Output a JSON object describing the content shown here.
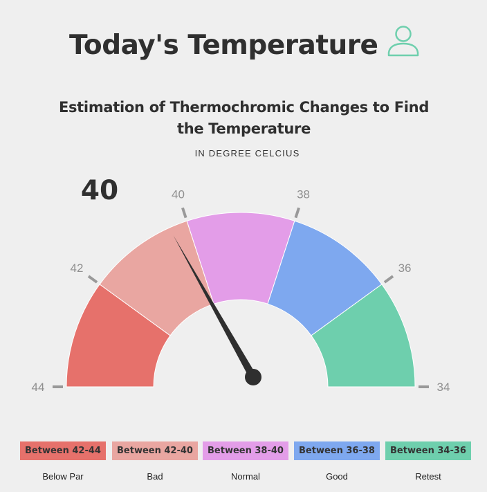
{
  "page": {
    "title": "Today's Temperature",
    "subtitle_line1": "Estimation of Thermochromic Changes to Find",
    "subtitle_line2": "the Temperature",
    "unit": "IN DEGREE CELCIUS",
    "current_value_label": "40",
    "user_icon": "user-icon"
  },
  "chart_data": {
    "type": "gauge",
    "title": "Estimation of Thermochromic Changes to Find the Temperature",
    "subtitle": "IN DEGREE CELCIUS",
    "current_value": 40,
    "value_min": 34,
    "value_max": 44,
    "orientation": "values decrease from left to right",
    "tick_labels": [
      "44",
      "42",
      "40",
      "38",
      "36",
      "34"
    ],
    "bands": [
      {
        "range": "Between 42-44",
        "label": "Below Par",
        "min": 42,
        "max": 44,
        "color": "#e6716b"
      },
      {
        "range": "Between 42-40",
        "label": "Bad",
        "min": 40,
        "max": 42,
        "color": "#e9a6a1"
      },
      {
        "range": "Between 38-40",
        "label": "Normal",
        "min": 38,
        "max": 40,
        "color": "#e39de8"
      },
      {
        "range": "Between 36-38",
        "label": "Good",
        "min": 36,
        "max": 38,
        "color": "#7ea8ef"
      },
      {
        "range": "Between 34-36",
        "label": "Retest",
        "min": 34,
        "max": 36,
        "color": "#6ecfad"
      }
    ]
  },
  "legend": {
    "items": [
      {
        "range": "Between 42-44",
        "label": "Below Par",
        "color": "#e6716b"
      },
      {
        "range": "Between 42-40",
        "label": "Bad",
        "color": "#e9a6a1"
      },
      {
        "range": "Between 38-40",
        "label": "Normal",
        "color": "#e39de8"
      },
      {
        "range": "Between 36-38",
        "label": "Good",
        "color": "#7ea8ef"
      },
      {
        "range": "Between 34-36",
        "label": "Retest",
        "color": "#6ecfad"
      }
    ]
  }
}
